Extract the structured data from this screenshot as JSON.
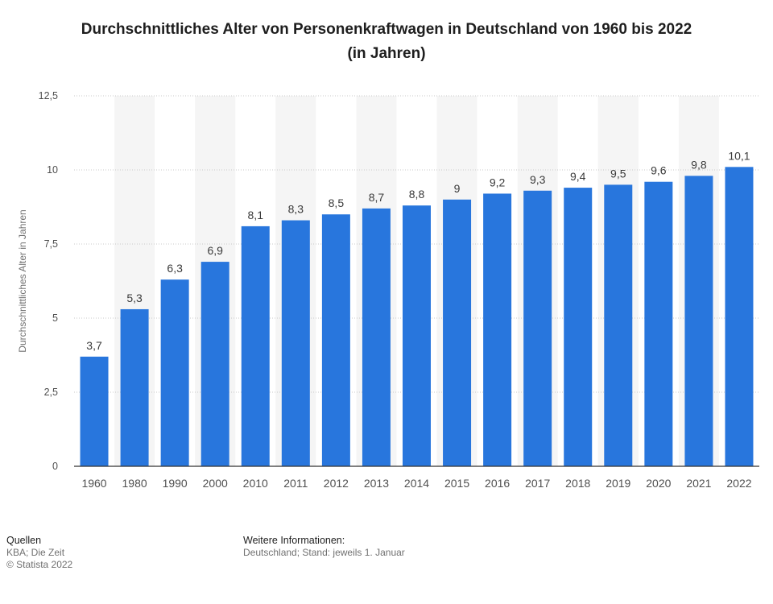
{
  "title": {
    "line1": "Durchschnittliches Alter von Personenkraftwagen in Deutschland von 1960 bis 2022",
    "line2": "(in Jahren)"
  },
  "chart_data": {
    "type": "bar",
    "categories": [
      "1960",
      "1980",
      "1990",
      "2000",
      "2010",
      "2011",
      "2012",
      "2013",
      "2014",
      "2015",
      "2016",
      "2017",
      "2018",
      "2019",
      "2020",
      "2021",
      "2022"
    ],
    "values": [
      3.7,
      5.3,
      6.3,
      6.9,
      8.1,
      8.3,
      8.5,
      8.7,
      8.8,
      9,
      9.2,
      9.3,
      9.4,
      9.5,
      9.6,
      9.8,
      10.1
    ],
    "value_labels": [
      "3,7",
      "5,3",
      "6,3",
      "6,9",
      "8,1",
      "8,3",
      "8,5",
      "8,7",
      "8,8",
      "9",
      "9,2",
      "9,3",
      "9,4",
      "9,5",
      "9,6",
      "9,8",
      "10,1"
    ],
    "ylabel": "Durchschnittliches Alter in Jahren",
    "xlabel": "",
    "ylim": [
      0,
      12.5
    ],
    "yticks": [
      0,
      2.5,
      5,
      7.5,
      10,
      12.5
    ],
    "ytick_labels": [
      "0",
      "2,5",
      "5",
      "7,5",
      "10",
      "12,5"
    ],
    "grid": true,
    "bar_color": "#2876dd"
  },
  "footer": {
    "sources_heading": "Quellen",
    "sources_text": "KBA; Die Zeit",
    "copyright": "© Statista 2022",
    "info_heading": "Weitere Informationen:",
    "info_text": "Deutschland; Stand: jeweils 1. Januar"
  }
}
